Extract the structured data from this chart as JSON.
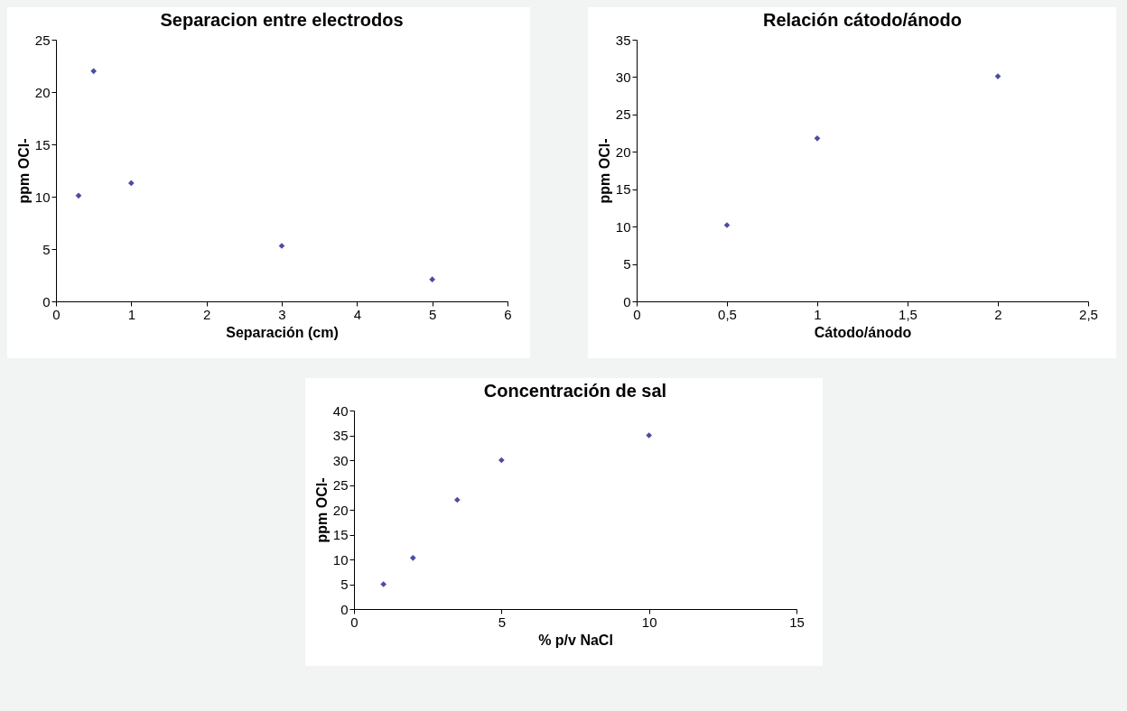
{
  "chart_data": [
    {
      "type": "scatter",
      "title": "Separacion entre electrodos",
      "xlabel": "Separación (cm)",
      "ylabel": "ppm OCl-",
      "x": [
        0.3,
        0.5,
        1,
        3,
        5
      ],
      "values": [
        10.1,
        22,
        11.3,
        5.3,
        2.1
      ],
      "color": "#000080",
      "marker": "diamond",
      "xlim": [
        0,
        6
      ],
      "xticks": [
        0,
        1,
        2,
        3,
        4,
        5,
        6
      ],
      "ylim": [
        0,
        25
      ],
      "yticks": [
        0,
        5,
        10,
        15,
        20,
        25
      ],
      "grid": false,
      "legend": false
    },
    {
      "type": "scatter",
      "title": "Relación cátodo/ánodo",
      "xlabel": "Cátodo/ánodo",
      "ylabel": "ppm OCl-",
      "x": [
        0.5,
        1,
        2
      ],
      "values": [
        10.2,
        21.8,
        30.1
      ],
      "color": "#000080",
      "marker": "diamond",
      "xlim": [
        0,
        2.5
      ],
      "xticks": [
        0,
        {
          "value": 0.5,
          "label": "0,5"
        },
        1,
        {
          "value": 1.5,
          "label": "1,5"
        },
        2,
        {
          "value": 2.5,
          "label": "2,5"
        }
      ],
      "ylim": [
        0,
        35
      ],
      "yticks": [
        0,
        5,
        10,
        15,
        20,
        25,
        30,
        35
      ],
      "grid": false,
      "legend": false
    },
    {
      "type": "scatter",
      "title": "Concentración de sal",
      "xlabel": "%  p/v NaCl",
      "ylabel": "ppm OCl-",
      "x": [
        1,
        2,
        3.5,
        5,
        10
      ],
      "values": [
        5,
        10.3,
        22,
        30,
        35
      ],
      "color": "#000080",
      "marker": "diamond",
      "xlim": [
        0,
        15
      ],
      "xticks": [
        0,
        5,
        10,
        15
      ],
      "ylim": [
        0,
        40
      ],
      "yticks": [
        0,
        5,
        10,
        15,
        20,
        25,
        30,
        35,
        40
      ],
      "grid": false,
      "legend": false
    }
  ]
}
